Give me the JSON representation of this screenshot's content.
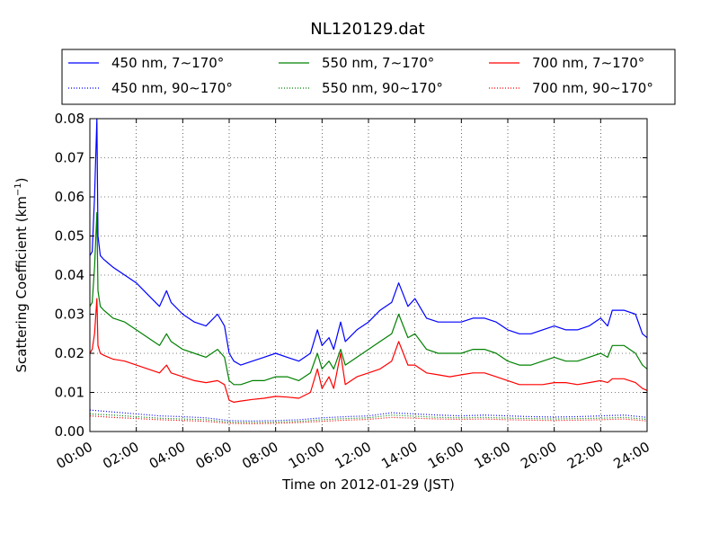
{
  "chart_data": {
    "type": "line",
    "title": "NL120129.dat",
    "xlabel": "Time on 2012-01-29 (JST)",
    "ylabel_main": "Scattering Coefficient (km",
    "ylabel_sup": "−1",
    "ylabel_end": ")",
    "xlim": [
      0,
      24
    ],
    "ylim": [
      0,
      0.08
    ],
    "grid": true,
    "legend_position": "top",
    "x_ticks": [
      0,
      2,
      4,
      6,
      8,
      10,
      12,
      14,
      16,
      18,
      20,
      22,
      24
    ],
    "x_tick_labels": [
      "00:00",
      "02:00",
      "04:00",
      "06:00",
      "08:00",
      "10:00",
      "12:00",
      "14:00",
      "16:00",
      "18:00",
      "20:00",
      "22:00",
      "24:00"
    ],
    "y_ticks": [
      0,
      0.01,
      0.02,
      0.03,
      0.04,
      0.05,
      0.06,
      0.07,
      0.08
    ],
    "y_tick_labels": [
      "0.00",
      "0.01",
      "0.02",
      "0.03",
      "0.04",
      "0.05",
      "0.06",
      "0.07",
      "0.08"
    ],
    "series": [
      {
        "name": "450 nm, 7∼170°",
        "color": "#0000ff",
        "style": "solid",
        "x": [
          0.0,
          0.1,
          0.2,
          0.3,
          0.35,
          0.45,
          0.6,
          0.8,
          1.0,
          1.5,
          2.0,
          2.5,
          3.0,
          3.3,
          3.5,
          4.0,
          4.5,
          5.0,
          5.5,
          5.8,
          6.0,
          6.2,
          6.5,
          7.0,
          7.5,
          8.0,
          8.5,
          9.0,
          9.5,
          9.8,
          10.0,
          10.3,
          10.5,
          10.8,
          11.0,
          11.5,
          12.0,
          12.5,
          13.0,
          13.3,
          13.5,
          13.7,
          14.0,
          14.5,
          15.0,
          15.5,
          16.0,
          16.5,
          17.0,
          17.5,
          18.0,
          18.5,
          19.0,
          19.5,
          20.0,
          20.5,
          21.0,
          21.5,
          22.0,
          22.3,
          22.5,
          23.0,
          23.5,
          23.8,
          24.0
        ],
        "y": [
          0.045,
          0.046,
          0.06,
          0.08,
          0.05,
          0.045,
          0.044,
          0.043,
          0.042,
          0.04,
          0.038,
          0.035,
          0.032,
          0.036,
          0.033,
          0.03,
          0.028,
          0.027,
          0.03,
          0.027,
          0.02,
          0.018,
          0.017,
          0.018,
          0.019,
          0.02,
          0.019,
          0.018,
          0.02,
          0.026,
          0.022,
          0.024,
          0.021,
          0.028,
          0.023,
          0.026,
          0.028,
          0.031,
          0.033,
          0.038,
          0.035,
          0.032,
          0.034,
          0.029,
          0.028,
          0.028,
          0.028,
          0.029,
          0.029,
          0.028,
          0.026,
          0.025,
          0.025,
          0.026,
          0.027,
          0.026,
          0.026,
          0.027,
          0.029,
          0.027,
          0.031,
          0.031,
          0.03,
          0.025,
          0.024
        ]
      },
      {
        "name": "450 nm, 90∼170°",
        "color": "#0000ff",
        "style": "dotted",
        "x": [
          0,
          1,
          2,
          3,
          4,
          5,
          6,
          7,
          8,
          9,
          10,
          11,
          12,
          13,
          14,
          15,
          16,
          17,
          18,
          19,
          20,
          21,
          22,
          23,
          24
        ],
        "y": [
          0.0055,
          0.005,
          0.0045,
          0.004,
          0.0038,
          0.0035,
          0.0028,
          0.0027,
          0.0028,
          0.003,
          0.0035,
          0.0038,
          0.004,
          0.0048,
          0.0045,
          0.0042,
          0.004,
          0.0042,
          0.004,
          0.0038,
          0.0037,
          0.0038,
          0.004,
          0.0042,
          0.0036
        ]
      },
      {
        "name": "550 nm, 7∼170°",
        "color": "#008000",
        "style": "solid",
        "x": [
          0.0,
          0.1,
          0.2,
          0.3,
          0.35,
          0.45,
          0.6,
          0.8,
          1.0,
          1.5,
          2.0,
          2.5,
          3.0,
          3.3,
          3.5,
          4.0,
          4.5,
          5.0,
          5.5,
          5.8,
          6.0,
          6.2,
          6.5,
          7.0,
          7.5,
          8.0,
          8.5,
          9.0,
          9.5,
          9.8,
          10.0,
          10.3,
          10.5,
          10.8,
          11.0,
          11.5,
          12.0,
          12.5,
          13.0,
          13.3,
          13.5,
          13.7,
          14.0,
          14.5,
          15.0,
          15.5,
          16.0,
          16.5,
          17.0,
          17.5,
          18.0,
          18.5,
          19.0,
          19.5,
          20.0,
          20.5,
          21.0,
          21.5,
          22.0,
          22.3,
          22.5,
          23.0,
          23.5,
          23.8,
          24.0
        ],
        "y": [
          0.032,
          0.033,
          0.042,
          0.056,
          0.036,
          0.032,
          0.031,
          0.03,
          0.029,
          0.028,
          0.026,
          0.024,
          0.022,
          0.025,
          0.023,
          0.021,
          0.02,
          0.019,
          0.021,
          0.019,
          0.013,
          0.012,
          0.012,
          0.013,
          0.013,
          0.014,
          0.014,
          0.013,
          0.015,
          0.02,
          0.016,
          0.018,
          0.016,
          0.021,
          0.017,
          0.019,
          0.021,
          0.023,
          0.025,
          0.03,
          0.027,
          0.024,
          0.025,
          0.021,
          0.02,
          0.02,
          0.02,
          0.021,
          0.021,
          0.02,
          0.018,
          0.017,
          0.017,
          0.018,
          0.019,
          0.018,
          0.018,
          0.019,
          0.02,
          0.019,
          0.022,
          0.022,
          0.02,
          0.017,
          0.016
        ]
      },
      {
        "name": "550 nm, 90∼170°",
        "color": "#008000",
        "style": "dotted",
        "x": [
          0,
          1,
          2,
          3,
          4,
          5,
          6,
          7,
          8,
          9,
          10,
          11,
          12,
          13,
          14,
          15,
          16,
          17,
          18,
          19,
          20,
          21,
          22,
          23,
          24
        ],
        "y": [
          0.0045,
          0.0042,
          0.0038,
          0.0034,
          0.0032,
          0.003,
          0.0024,
          0.0023,
          0.0024,
          0.0026,
          0.003,
          0.0033,
          0.0035,
          0.0042,
          0.0039,
          0.0036,
          0.0035,
          0.0036,
          0.0034,
          0.0033,
          0.0032,
          0.0033,
          0.0034,
          0.0036,
          0.0031
        ]
      },
      {
        "name": "700 nm, 7∼170°",
        "color": "#ff0000",
        "style": "solid",
        "x": [
          0.0,
          0.1,
          0.2,
          0.3,
          0.35,
          0.45,
          0.6,
          0.8,
          1.0,
          1.5,
          2.0,
          2.5,
          3.0,
          3.3,
          3.5,
          4.0,
          4.5,
          5.0,
          5.5,
          5.8,
          6.0,
          6.2,
          6.5,
          7.0,
          7.5,
          8.0,
          8.5,
          9.0,
          9.5,
          9.8,
          10.0,
          10.3,
          10.5,
          10.8,
          11.0,
          11.5,
          12.0,
          12.5,
          13.0,
          13.3,
          13.5,
          13.7,
          14.0,
          14.5,
          15.0,
          15.5,
          16.0,
          16.5,
          17.0,
          17.5,
          18.0,
          18.5,
          19.0,
          19.5,
          20.0,
          20.5,
          21.0,
          21.5,
          22.0,
          22.3,
          22.5,
          23.0,
          23.5,
          23.8,
          24.0
        ],
        "y": [
          0.02,
          0.021,
          0.025,
          0.034,
          0.022,
          0.02,
          0.0195,
          0.019,
          0.0185,
          0.018,
          0.017,
          0.016,
          0.015,
          0.017,
          0.015,
          0.014,
          0.013,
          0.0125,
          0.013,
          0.012,
          0.008,
          0.0075,
          0.0078,
          0.0082,
          0.0085,
          0.009,
          0.0088,
          0.0085,
          0.01,
          0.016,
          0.011,
          0.014,
          0.011,
          0.02,
          0.012,
          0.014,
          0.015,
          0.016,
          0.018,
          0.023,
          0.02,
          0.017,
          0.017,
          0.015,
          0.0145,
          0.014,
          0.0145,
          0.015,
          0.015,
          0.014,
          0.013,
          0.012,
          0.012,
          0.012,
          0.0125,
          0.0125,
          0.012,
          0.0125,
          0.013,
          0.0125,
          0.0135,
          0.0135,
          0.0125,
          0.011,
          0.0105
        ]
      },
      {
        "name": "700 nm, 90∼170°",
        "color": "#ff0000",
        "style": "dotted",
        "x": [
          0,
          1,
          2,
          3,
          4,
          5,
          6,
          7,
          8,
          9,
          10,
          11,
          12,
          13,
          14,
          15,
          16,
          17,
          18,
          19,
          20,
          21,
          22,
          23,
          24
        ],
        "y": [
          0.004,
          0.0036,
          0.0033,
          0.003,
          0.0028,
          0.0026,
          0.0021,
          0.002,
          0.0021,
          0.0023,
          0.0026,
          0.0029,
          0.0031,
          0.0036,
          0.0034,
          0.0032,
          0.0031,
          0.0032,
          0.003,
          0.0029,
          0.0028,
          0.0029,
          0.003,
          0.0032,
          0.0027
        ]
      }
    ]
  }
}
